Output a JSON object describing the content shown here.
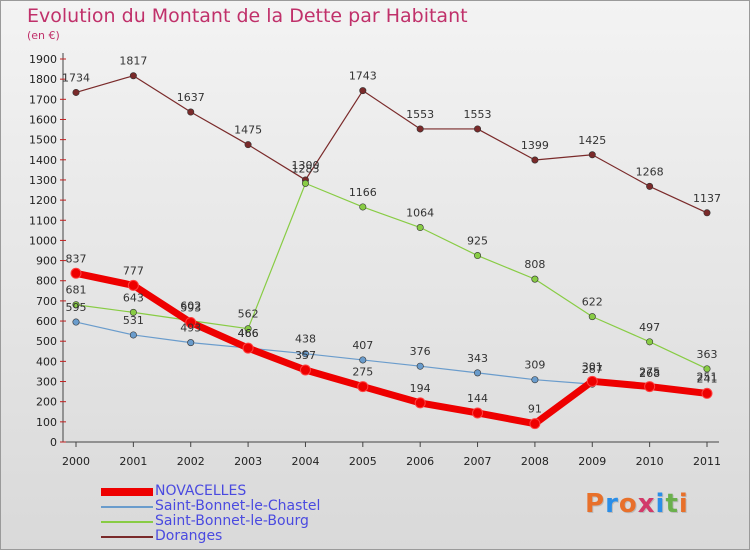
{
  "title": "Evolution du Montant de la Dette par Habitant",
  "subtitle": "(en €)",
  "logo": {
    "text": "Proxiti",
    "colors": [
      "#e8702a",
      "#2a8ee8",
      "#e8702a",
      "#d23a6a",
      "#2a8ee8",
      "#6ab04c",
      "#e8702a"
    ]
  },
  "chart_data": {
    "type": "line",
    "title": "Evolution du Montant de la Dette par Habitant",
    "subtitle": "(en €)",
    "x": [
      "2000",
      "2001",
      "2002",
      "2003",
      "2004",
      "2005",
      "2006",
      "2007",
      "2008",
      "2009",
      "2010",
      "2011"
    ],
    "ylim": [
      0,
      1900
    ],
    "yticks": [
      0,
      100,
      200,
      300,
      400,
      500,
      600,
      700,
      800,
      900,
      1000,
      1100,
      1200,
      1300,
      1400,
      1500,
      1600,
      1700,
      1800,
      1900
    ],
    "grid": false,
    "legend_position": "bottom-left",
    "series": [
      {
        "name": "NOVACELLES",
        "color": "#ee0000",
        "values": [
          837,
          777,
          593,
          466,
          357,
          275,
          194,
          144,
          91,
          301,
          275,
          241
        ]
      },
      {
        "name": "Saint-Bonnet-le-Chastel",
        "color": "#6a9ccc",
        "values": [
          595,
          531,
          493,
          466,
          438,
          407,
          376,
          343,
          309,
          287,
          268,
          251
        ]
      },
      {
        "name": "Saint-Bonnet-le-Bourg",
        "color": "#88cc44",
        "values": [
          681,
          643,
          602,
          562,
          1283,
          1166,
          1064,
          925,
          808,
          622,
          497,
          363
        ]
      },
      {
        "name": "Doranges",
        "color": "#7a2a2a",
        "values": [
          1734,
          1817,
          1637,
          1475,
          1300,
          1743,
          1553,
          1553,
          1399,
          1425,
          1268,
          1137
        ]
      }
    ]
  }
}
